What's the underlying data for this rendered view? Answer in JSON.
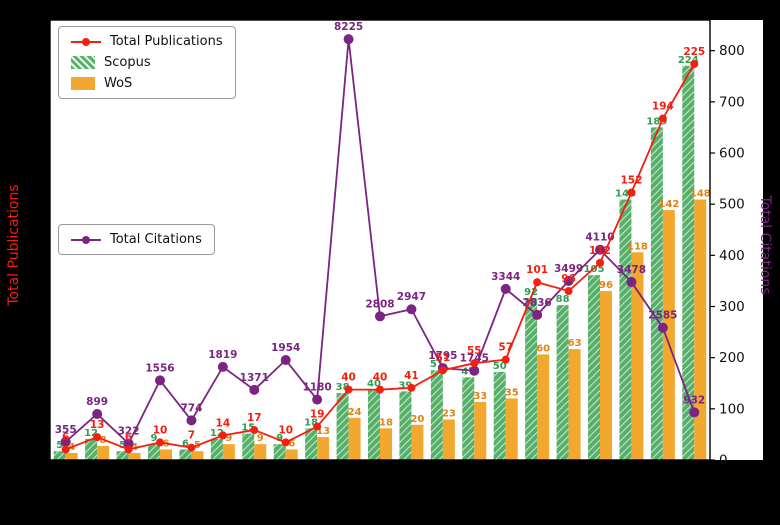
{
  "chart_data": {
    "type": "bar",
    "description": "Grouped bar chart (Scopus, WoS) with two overlaid marker lines: Total Publications (left axis, red) and Total Citations (right axis, purple). X tick labels and left axis tick labels are not visible (black on black figure margin).",
    "num_categories": 21,
    "x_tick_labels_visible": false,
    "grid": false,
    "series": [
      {
        "name": "Total Publications",
        "type": "line",
        "axis": "left",
        "values": [
          6,
          13,
          6,
          10,
          7,
          14,
          17,
          10,
          19,
          40,
          40,
          41,
          51,
          55,
          57,
          101,
          96,
          112,
          152,
          194,
          225
        ]
      },
      {
        "name": "Scopus",
        "type": "bar",
        "axis": "left",
        "hatch": true,
        "values": [
          5,
          12,
          5,
          9,
          6,
          12,
          15,
          9,
          18,
          38,
          40,
          39,
          51,
          47,
          50,
          92,
          88,
          105,
          148,
          189,
          224
        ]
      },
      {
        "name": "WoS",
        "type": "bar",
        "axis": "left",
        "values": [
          4,
          8,
          4,
          6,
          5,
          9,
          9,
          6,
          13,
          24,
          18,
          20,
          23,
          33,
          35,
          60,
          63,
          96,
          118,
          142,
          148
        ]
      },
      {
        "name": "Total Citations",
        "type": "line",
        "axis": "right",
        "plotted_as": "value/10",
        "values": [
          355,
          899,
          322,
          1556,
          774,
          1819,
          1371,
          1954,
          1180,
          8225,
          2808,
          2947,
          1795,
          1745,
          3344,
          2836,
          3499,
          4110,
          3478,
          2585,
          932
        ]
      }
    ],
    "left_axis": {
      "label": "Total Publications",
      "range": [
        0,
        250
      ],
      "tick_labels_visible": false
    },
    "right_axis": {
      "label": "Total Citations",
      "ticks": [
        0,
        100,
        200,
        300,
        400,
        500,
        600,
        700,
        800
      ],
      "range": [
        0,
        860
      ]
    },
    "legend_main": {
      "items": [
        "Total Publications",
        "Scopus",
        "WoS"
      ]
    },
    "legend_citations": {
      "items": [
        "Total Citations"
      ]
    },
    "colors": {
      "total_publications": "#f51f0f",
      "scopus": "#57b06a",
      "scopus_label": "#2e9e4f",
      "wos": "#f2a72e",
      "wos_label": "#e08214",
      "citations": "#7b2482",
      "plot_bg": "#ffffff",
      "page_bg": "#000000",
      "spine": "#000000",
      "tick_label": "#111111"
    }
  }
}
